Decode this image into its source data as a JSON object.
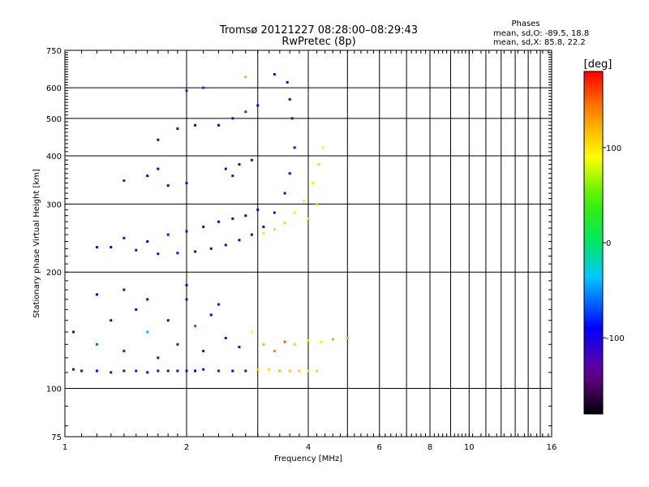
{
  "chart_data": {
    "type": "scatter",
    "title": "Tromsø 20121227 08:28:00–08:29:43",
    "subtitle": "RwPretec (8p)",
    "xlabel": "Frequency [MHz]",
    "ylabel": "Stationary phase Virtual Height [km]",
    "x_scale": "log",
    "y_scale": "log",
    "xlim": [
      1,
      16
    ],
    "ylim": [
      75,
      750
    ],
    "x_ticks": [
      1,
      2,
      4,
      6,
      8,
      10,
      16
    ],
    "x_tick_labels": [
      "1",
      "2",
      "4",
      "6",
      "8",
      "10",
      "16"
    ],
    "y_ticks": [
      75,
      100,
      200,
      300,
      400,
      500,
      600,
      750
    ],
    "y_tick_labels": [
      "75",
      "100",
      "200",
      "300",
      "400",
      "500",
      "600",
      "750"
    ],
    "grid": true,
    "stats": {
      "heading": "Phases",
      "line_o": "mean, sd,O: -89.5, 18.8",
      "line_x": "mean, sd,X:  85.8, 22.2"
    },
    "colorbar": {
      "label": "[deg]",
      "range": [
        -180,
        180
      ],
      "ticks": [
        100,
        0,
        -100
      ],
      "tick_labels": [
        "100",
        "0",
        "-100"
      ],
      "colormap": "rainbow (black-violet-blue-cyan-green-yellow-red)"
    },
    "series": [
      {
        "description_points": "representative echoes (frequency MHz, virtual height km, phase deg)",
        "points": [
          [
            1.05,
            112,
            -110
          ],
          [
            1.1,
            111,
            -105
          ],
          [
            1.2,
            111,
            -100
          ],
          [
            1.3,
            110,
            -115
          ],
          [
            1.4,
            111,
            -108
          ],
          [
            1.5,
            111,
            -112
          ],
          [
            1.6,
            110,
            -95
          ],
          [
            1.7,
            111,
            -105
          ],
          [
            1.8,
            111,
            -110
          ],
          [
            1.9,
            111,
            -100
          ],
          [
            2.0,
            111,
            -95
          ],
          [
            2.1,
            111,
            -90
          ],
          [
            2.2,
            112,
            -85
          ],
          [
            2.4,
            111,
            -80
          ],
          [
            2.6,
            111,
            -90
          ],
          [
            2.8,
            111,
            -85
          ],
          [
            3.0,
            112,
            110
          ],
          [
            3.2,
            112,
            105
          ],
          [
            3.4,
            111,
            120
          ],
          [
            3.6,
            111,
            115
          ],
          [
            3.8,
            111,
            110
          ],
          [
            4.0,
            111,
            100
          ],
          [
            4.2,
            111,
            105
          ],
          [
            1.05,
            140,
            -110
          ],
          [
            1.2,
            130,
            -60
          ],
          [
            1.3,
            150,
            -90
          ],
          [
            1.4,
            125,
            -130
          ],
          [
            1.5,
            160,
            -100
          ],
          [
            1.6,
            140,
            -40
          ],
          [
            1.7,
            120,
            -120
          ],
          [
            1.8,
            150,
            -95
          ],
          [
            1.9,
            130,
            -140
          ],
          [
            2.0,
            170,
            -85
          ],
          [
            2.1,
            145,
            -60
          ],
          [
            2.2,
            125,
            -110
          ],
          [
            2.3,
            155,
            -90
          ],
          [
            2.5,
            135,
            -100
          ],
          [
            2.7,
            128,
            -120
          ],
          [
            2.9,
            140,
            90
          ],
          [
            3.1,
            130,
            120
          ],
          [
            3.3,
            125,
            140
          ],
          [
            3.5,
            132,
            150
          ],
          [
            3.7,
            130,
            110
          ],
          [
            4.0,
            133,
            100
          ],
          [
            4.3,
            132,
            95
          ],
          [
            4.6,
            134,
            130
          ],
          [
            5.0,
            135,
            120
          ],
          [
            1.2,
            175,
            -90
          ],
          [
            1.4,
            180,
            -110
          ],
          [
            1.6,
            170,
            -100
          ],
          [
            2.0,
            185,
            -95
          ],
          [
            2.4,
            165,
            -110
          ],
          [
            1.3,
            232,
            -100
          ],
          [
            1.5,
            228,
            -110
          ],
          [
            1.7,
            223,
            -115
          ],
          [
            1.9,
            224,
            -110
          ],
          [
            2.1,
            226,
            -108
          ],
          [
            2.3,
            230,
            -105
          ],
          [
            2.5,
            235,
            -100
          ],
          [
            2.7,
            242,
            -98
          ],
          [
            2.9,
            250,
            -95
          ],
          [
            3.1,
            262,
            -100
          ],
          [
            3.3,
            285,
            -102
          ],
          [
            3.5,
            320,
            -110
          ],
          [
            3.6,
            360,
            -115
          ],
          [
            3.7,
            420,
            -110
          ],
          [
            3.65,
            500,
            -105
          ],
          [
            3.6,
            560,
            -100
          ],
          [
            3.55,
            620,
            -95
          ],
          [
            1.2,
            232,
            -105
          ],
          [
            1.4,
            245,
            -110
          ],
          [
            1.6,
            240,
            -100
          ],
          [
            1.8,
            250,
            -105
          ],
          [
            2.0,
            255,
            -110
          ],
          [
            2.2,
            262,
            -105
          ],
          [
            2.4,
            270,
            -100
          ],
          [
            2.6,
            275,
            -95
          ],
          [
            2.8,
            280,
            -100
          ],
          [
            3.0,
            290,
            -100
          ],
          [
            3.1,
            252,
            100
          ],
          [
            3.3,
            258,
            105
          ],
          [
            3.5,
            268,
            110
          ],
          [
            3.7,
            285,
            100
          ],
          [
            3.9,
            305,
            95
          ],
          [
            4.1,
            340,
            100
          ],
          [
            4.25,
            380,
            105
          ],
          [
            4.35,
            420,
            95
          ],
          [
            4.2,
            300,
            110
          ],
          [
            4.0,
            275,
            105
          ],
          [
            1.4,
            345,
            -80
          ],
          [
            1.6,
            355,
            -90
          ],
          [
            1.8,
            335,
            -100
          ],
          [
            2.0,
            340,
            -110
          ],
          [
            1.7,
            370,
            -95
          ],
          [
            2.5,
            370,
            -90
          ],
          [
            2.7,
            380,
            -95
          ],
          [
            2.9,
            390,
            -100
          ],
          [
            2.6,
            355,
            -85
          ],
          [
            1.7,
            440,
            -105
          ],
          [
            1.9,
            470,
            -100
          ],
          [
            2.1,
            480,
            -95
          ],
          [
            2.0,
            590,
            -80
          ],
          [
            2.2,
            600,
            -75
          ],
          [
            2.4,
            480,
            -90
          ],
          [
            2.6,
            500,
            -85
          ],
          [
            2.8,
            520,
            -70
          ],
          [
            3.0,
            540,
            -100
          ],
          [
            2.8,
            640,
            60
          ],
          [
            3.3,
            650,
            -95
          ]
        ]
      }
    ]
  }
}
